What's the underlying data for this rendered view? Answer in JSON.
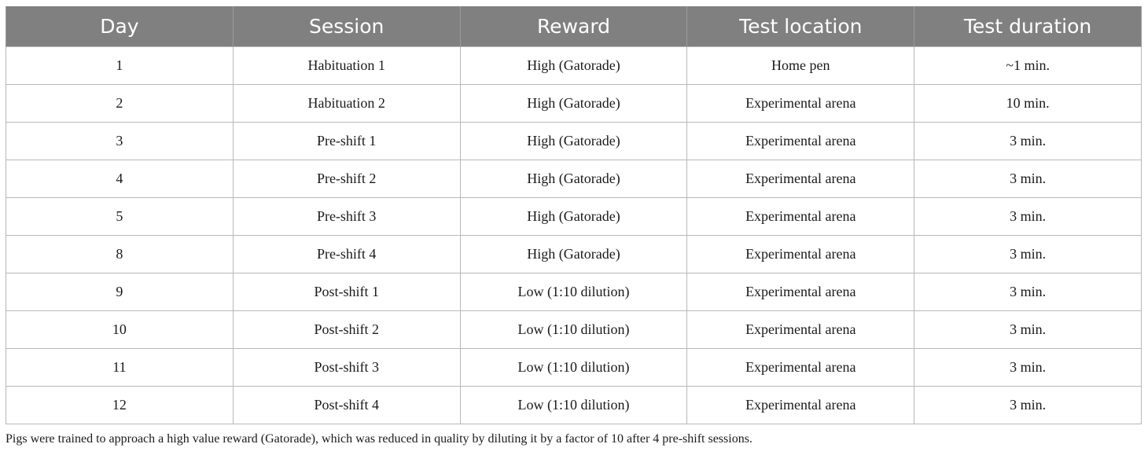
{
  "table": {
    "headers": [
      "Day",
      "Session",
      "Reward",
      "Test location",
      "Test duration"
    ],
    "rows": [
      [
        "1",
        "Habituation 1",
        "High (Gatorade)",
        "Home pen",
        "~1 min."
      ],
      [
        "2",
        "Habituation 2",
        "High (Gatorade)",
        "Experimental arena",
        "10 min."
      ],
      [
        "3",
        "Pre-shift 1",
        "High (Gatorade)",
        "Experimental arena",
        "3 min."
      ],
      [
        "4",
        "Pre-shift 2",
        "High (Gatorade)",
        "Experimental arena",
        "3 min."
      ],
      [
        "5",
        "Pre-shift 3",
        "High (Gatorade)",
        "Experimental arena",
        "3 min."
      ],
      [
        "8",
        "Pre-shift 4",
        "High (Gatorade)",
        "Experimental arena",
        "3 min."
      ],
      [
        "9",
        "Post-shift 1",
        "Low (1:10 dilution)",
        "Experimental arena",
        "3 min."
      ],
      [
        "10",
        "Post-shift 2",
        "Low (1:10 dilution)",
        "Experimental arena",
        "3 min."
      ],
      [
        "11",
        "Post-shift 3",
        "Low (1:10 dilution)",
        "Experimental arena",
        "3 min."
      ],
      [
        "12",
        "Post-shift 4",
        "Low (1:10 dilution)",
        "Experimental arena",
        "3 min."
      ]
    ]
  },
  "caption": "Pigs were trained to approach a high value reward (Gatorade), which was reduced in quality by diluting it by a factor of 10 after 4 pre-shift sessions."
}
